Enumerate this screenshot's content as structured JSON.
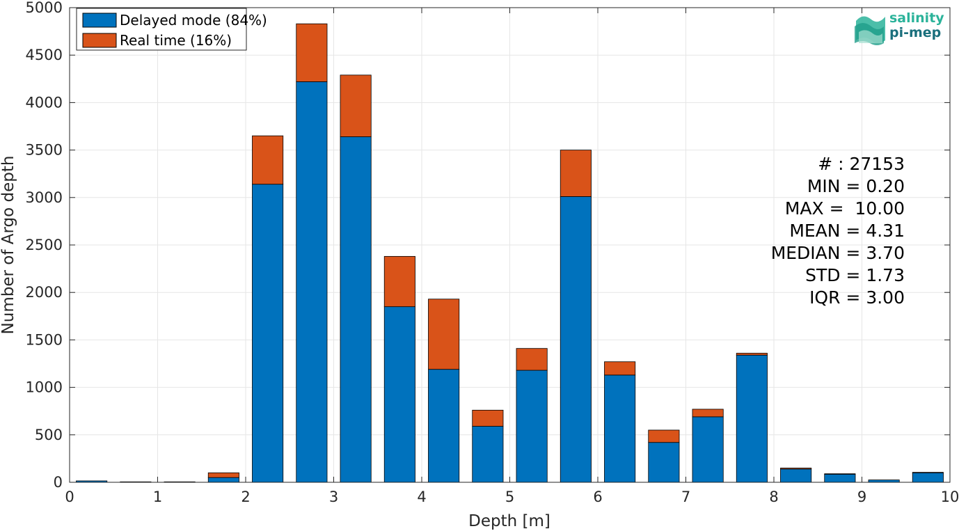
{
  "chart_data": {
    "type": "bar",
    "stacked": true,
    "title": "",
    "xlabel": "Depth [m]",
    "ylabel": "Number of Argo depth",
    "xlim": [
      0,
      10
    ],
    "ylim": [
      0,
      5000
    ],
    "xticks": [
      0,
      1,
      2,
      3,
      4,
      5,
      6,
      7,
      8,
      9,
      10
    ],
    "yticks": [
      0,
      500,
      1000,
      1500,
      2000,
      2500,
      3000,
      3500,
      4000,
      4500,
      5000
    ],
    "grid": true,
    "legend_position": "top-left",
    "bin_width": 0.5,
    "x": [
      0.25,
      0.75,
      1.25,
      1.75,
      2.25,
      2.75,
      3.25,
      3.75,
      4.25,
      4.75,
      5.25,
      5.75,
      6.25,
      6.75,
      7.25,
      7.75,
      8.25,
      8.75,
      9.25,
      9.75
    ],
    "series": [
      {
        "name": "Delayed mode (84%)",
        "color": "#0072bd",
        "values": [
          15,
          5,
          5,
          50,
          3140,
          4220,
          3640,
          1850,
          1190,
          590,
          1180,
          3010,
          1130,
          420,
          690,
          1340,
          140,
          85,
          25,
          100
        ]
      },
      {
        "name": "Real time (16%)",
        "color": "#d95319",
        "values": [
          0,
          0,
          0,
          50,
          510,
          610,
          650,
          530,
          740,
          170,
          230,
          490,
          140,
          130,
          80,
          20,
          10,
          5,
          0,
          5
        ]
      }
    ],
    "stats": [
      "# : 27153",
      "MIN = 0.20",
      "MAX =  10.00",
      "MEAN = 4.31",
      "MEDIAN = 3.70",
      "STD = 1.73",
      "IQR = 3.00"
    ]
  },
  "logo": {
    "line1": "salinity",
    "line2": "pi-mep",
    "color1": "#2bb39a",
    "color2": "#1a6f7c"
  }
}
